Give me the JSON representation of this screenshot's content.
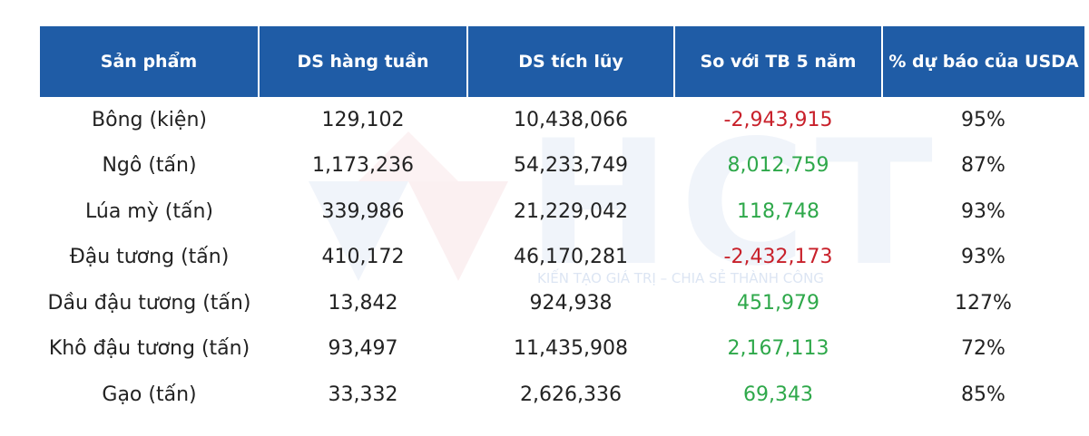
{
  "watermark": {
    "logo": "HCT",
    "tagline": "KIẾN TẠO GIÁ TRỊ – CHIA SẺ THÀNH CÔNG"
  },
  "table": {
    "header_color": "#1f5ca6",
    "negative_color": "#c8202a",
    "positive_color": "#2ea84a",
    "columns": [
      "Sản phẩm",
      "DS hàng tuần",
      "DS tích lũy",
      "So với TB 5 năm",
      "% dự báo của USDA"
    ],
    "rows": [
      [
        "Bông  (kiện)",
        "129,102",
        "10,438,066",
        "-2,943,915",
        "95%"
      ],
      [
        "Ngô (tấn)",
        "1,173,236",
        "54,233,749",
        "8,012,759",
        "87%"
      ],
      [
        "Lúa mỳ (tấn)",
        "339,986",
        "21,229,042",
        "118,748",
        "93%"
      ],
      [
        "Đậu tương (tấn)",
        "410,172",
        "46,170,281",
        "-2,432,173",
        "93%"
      ],
      [
        "Dầu đậu tương (tấn)",
        "13,842",
        "924,938",
        "451,979",
        "127%"
      ],
      [
        "Khô đậu tương (tấn)",
        "93,497",
        "11,435,908",
        "2,167,113",
        "72%"
      ],
      [
        "Gạo (tấn)",
        "33,332",
        "2,626,336",
        "69,343",
        "85%"
      ]
    ]
  }
}
